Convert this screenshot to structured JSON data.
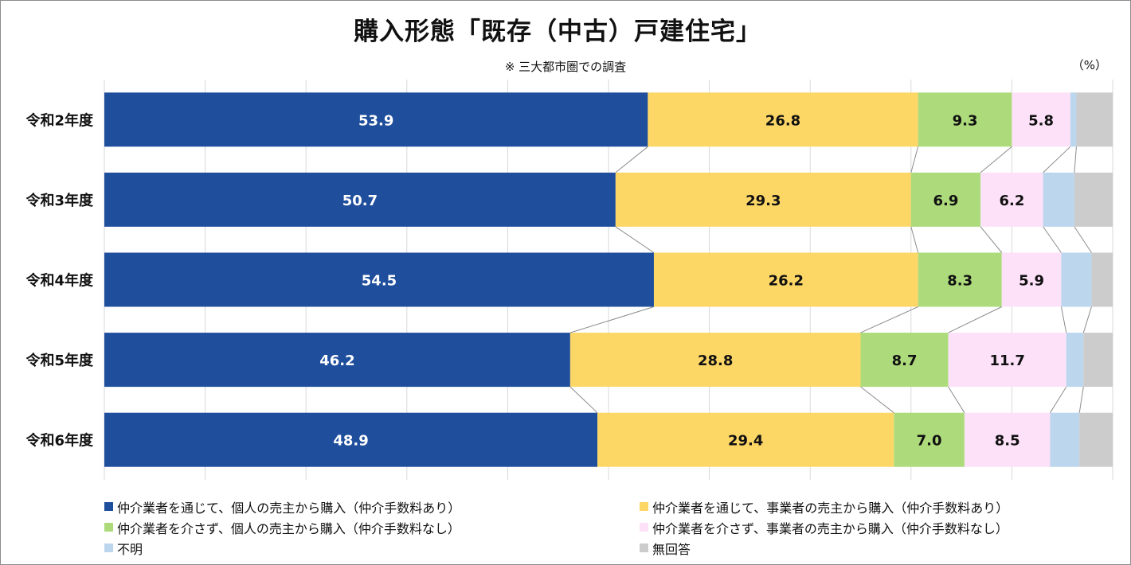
{
  "chart_data": {
    "type": "bar",
    "orientation": "horizontal",
    "stacked": true,
    "title": "購入形態「既存（中古）戸建住宅」",
    "subtitle": "※ 三大都市圏での調査",
    "unit_label": "（%）",
    "xlim": [
      0,
      100
    ],
    "grid": true,
    "legend_position": "bottom",
    "categories": [
      "令和2年度",
      "令和3年度",
      "令和4年度",
      "令和5年度",
      "令和6年度"
    ],
    "series": [
      {
        "name": "仲介業者を通じて、個人の売主から購入（仲介手数料あり）",
        "color": "#1f4e9c",
        "label_color": "#ffffff",
        "show_labels": true,
        "values": [
          53.9,
          50.7,
          54.5,
          46.2,
          48.9
        ]
      },
      {
        "name": "仲介業者を通じて、事業者の売主から購入（仲介手数料あり）",
        "color": "#fdd766",
        "label_color": "#111111",
        "show_labels": true,
        "values": [
          26.8,
          29.3,
          26.2,
          28.8,
          29.4
        ]
      },
      {
        "name": "仲介業者を介さず、個人の売主から購入（仲介手数料なし）",
        "color": "#addb7b",
        "label_color": "#111111",
        "show_labels": true,
        "values": [
          9.3,
          6.9,
          8.3,
          8.7,
          7.0
        ]
      },
      {
        "name": "仲介業者を介さず、事業者の売主から購入（仲介手数料なし）",
        "color": "#fde1f8",
        "label_color": "#111111",
        "show_labels": true,
        "values": [
          5.8,
          6.2,
          5.9,
          11.7,
          8.5
        ]
      },
      {
        "name": "不明",
        "color": "#bcd6ee",
        "label_color": "#111111",
        "show_labels": false,
        "values": [
          0.6,
          3.1,
          3.0,
          1.7,
          2.9
        ]
      },
      {
        "name": "無回答",
        "color": "#cccccc",
        "label_color": "#111111",
        "show_labels": false,
        "values": [
          3.6,
          3.8,
          2.1,
          2.9,
          3.3
        ]
      }
    ]
  }
}
